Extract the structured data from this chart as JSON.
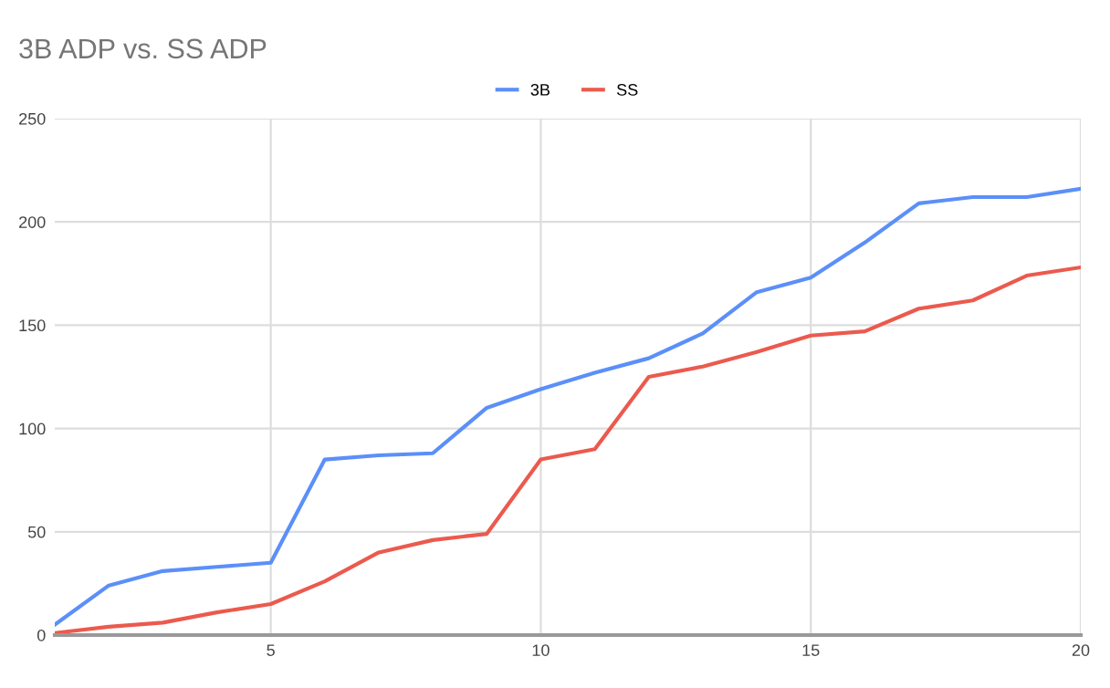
{
  "chart_data": {
    "type": "line",
    "title": "3B ADP vs. SS ADP",
    "x": [
      1,
      2,
      3,
      4,
      5,
      6,
      7,
      8,
      9,
      10,
      11,
      12,
      13,
      14,
      15,
      16,
      17,
      18,
      19,
      20
    ],
    "series": [
      {
        "name": "3B",
        "color": "#5b8ff9",
        "values": [
          5,
          24,
          31,
          33,
          35,
          85,
          87,
          88,
          110,
          119,
          127,
          134,
          146,
          166,
          173,
          190,
          209,
          212,
          212,
          216
        ]
      },
      {
        "name": "SS",
        "color": "#eb5a4e",
        "values": [
          1,
          4,
          6,
          11,
          15,
          26,
          40,
          46,
          49,
          85,
          90,
          125,
          130,
          137,
          145,
          147,
          158,
          162,
          174,
          178
        ]
      }
    ],
    "xlim": [
      1,
      20
    ],
    "xticks": [
      5,
      10,
      15,
      20
    ],
    "ylim": [
      0,
      250
    ],
    "yticks": [
      0,
      50,
      100,
      150,
      200,
      250
    ],
    "grid": true,
    "legend": "top",
    "marker": "none",
    "line_style": "solid"
  }
}
